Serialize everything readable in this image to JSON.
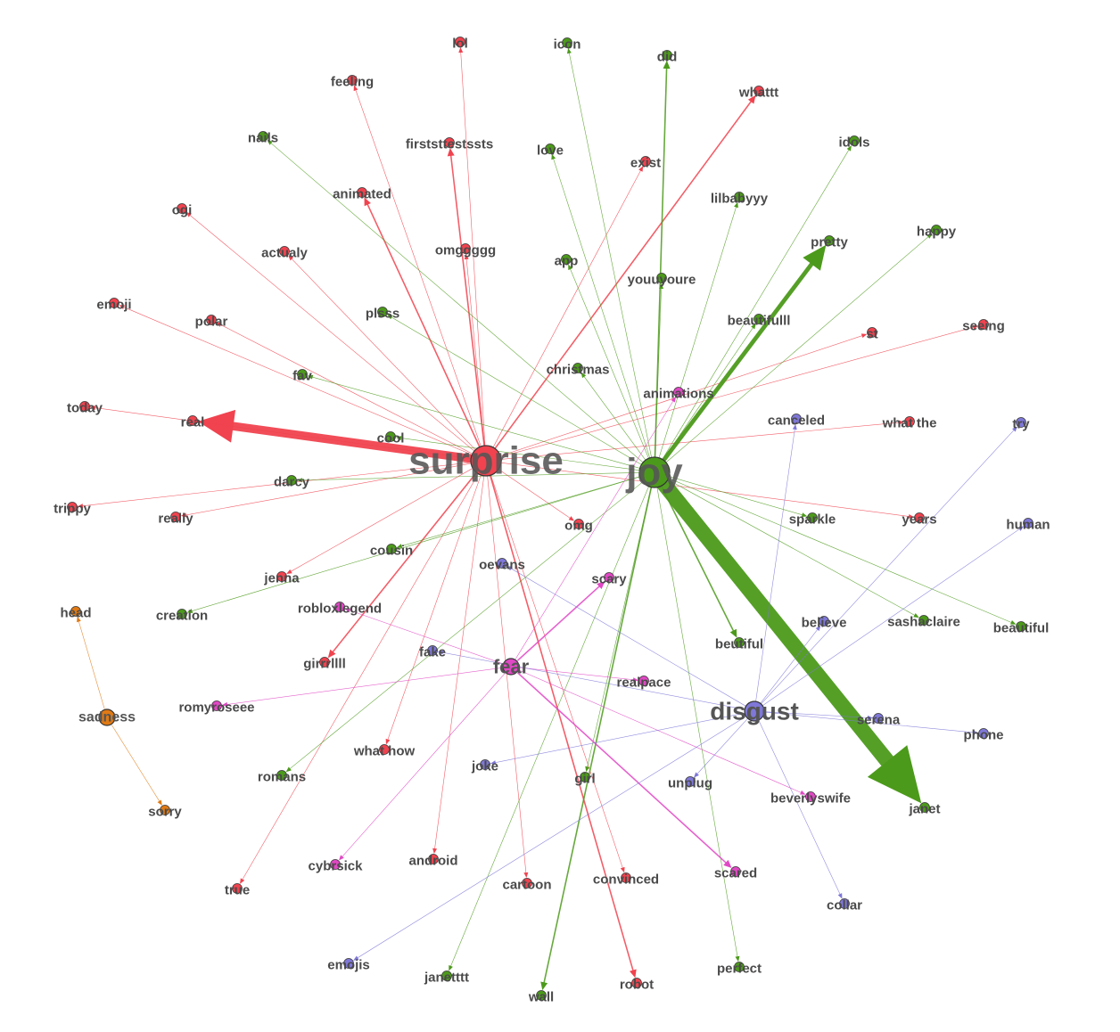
{
  "colors": {
    "surprise": "#f0434f",
    "joy": "#4c9a1b",
    "fear": "#e048c4",
    "disgust": "#7f78d8",
    "sadness": "#e07a14"
  },
  "hubs": [
    {
      "id": "surprise",
      "label": "surprise",
      "group": "surprise"
    },
    {
      "id": "joy",
      "label": "joy",
      "group": "joy"
    },
    {
      "id": "fear",
      "label": "fear",
      "group": "fear"
    },
    {
      "id": "disgust",
      "label": "disgust",
      "group": "disgust"
    },
    {
      "id": "sadness",
      "label": "sadness",
      "group": "sadness"
    }
  ],
  "nodes": [
    {
      "id": "n_lol",
      "label": "lol",
      "group": "surprise"
    },
    {
      "id": "feeling",
      "label": "feeling",
      "group": "surprise"
    },
    {
      "id": "firststtestssts",
      "label": "firststtestssts",
      "group": "surprise"
    },
    {
      "id": "animated",
      "label": "animated",
      "group": "surprise"
    },
    {
      "id": "ogi",
      "label": "ogi",
      "group": "surprise"
    },
    {
      "id": "actualy",
      "label": "actualy",
      "group": "surprise"
    },
    {
      "id": "omggggg",
      "label": "omggggg",
      "group": "surprise"
    },
    {
      "id": "emoji",
      "label": "emoji",
      "group": "surprise"
    },
    {
      "id": "polar",
      "label": "polar",
      "group": "surprise"
    },
    {
      "id": "today",
      "label": "today",
      "group": "surprise"
    },
    {
      "id": "real",
      "label": "real",
      "group": "surprise"
    },
    {
      "id": "trippy",
      "label": "trippy",
      "group": "surprise"
    },
    {
      "id": "really",
      "label": "really",
      "group": "surprise"
    },
    {
      "id": "jenna",
      "label": "jenna",
      "group": "surprise"
    },
    {
      "id": "girrrllll",
      "label": "girrrllll",
      "group": "surprise"
    },
    {
      "id": "whathow",
      "label": "what how",
      "group": "surprise"
    },
    {
      "id": "true",
      "label": "true",
      "group": "surprise"
    },
    {
      "id": "android",
      "label": "android",
      "group": "surprise"
    },
    {
      "id": "cartoon",
      "label": "cartoon",
      "group": "surprise"
    },
    {
      "id": "convinced",
      "label": "convinced",
      "group": "surprise"
    },
    {
      "id": "robot",
      "label": "robot",
      "group": "surprise"
    },
    {
      "id": "omg",
      "label": "omg",
      "group": "surprise"
    },
    {
      "id": "whattt",
      "label": "whattt",
      "group": "surprise"
    },
    {
      "id": "exist",
      "label": "exist",
      "group": "surprise"
    },
    {
      "id": "st",
      "label": "st",
      "group": "surprise"
    },
    {
      "id": "seeing",
      "label": "seeing",
      "group": "surprise"
    },
    {
      "id": "whatthe",
      "label": "what the",
      "group": "surprise"
    },
    {
      "id": "years",
      "label": "years",
      "group": "surprise"
    },
    {
      "id": "icon",
      "label": "icon",
      "group": "joy"
    },
    {
      "id": "did",
      "label": "did",
      "group": "joy"
    },
    {
      "id": "nails",
      "label": "nails",
      "group": "joy"
    },
    {
      "id": "love",
      "label": "love",
      "group": "joy"
    },
    {
      "id": "idols",
      "label": "idols",
      "group": "joy"
    },
    {
      "id": "lilbabyyy",
      "label": "lilbabyyy",
      "group": "joy"
    },
    {
      "id": "pretty",
      "label": "pretty",
      "group": "joy"
    },
    {
      "id": "happy",
      "label": "happy",
      "group": "joy"
    },
    {
      "id": "app",
      "label": "app",
      "group": "joy"
    },
    {
      "id": "youuyoure",
      "label": "youuyoure",
      "group": "joy"
    },
    {
      "id": "plsss",
      "label": "plsss",
      "group": "joy"
    },
    {
      "id": "beautifulll",
      "label": "beautifulll",
      "group": "joy"
    },
    {
      "id": "fav",
      "label": "fav",
      "group": "joy"
    },
    {
      "id": "christmas",
      "label": "christmas",
      "group": "joy"
    },
    {
      "id": "cool",
      "label": "cool",
      "group": "joy"
    },
    {
      "id": "darcy",
      "label": "darcy",
      "group": "joy"
    },
    {
      "id": "cousin",
      "label": "cousin",
      "group": "joy"
    },
    {
      "id": "creation",
      "label": "creation",
      "group": "joy"
    },
    {
      "id": "sparkle",
      "label": "sparkle",
      "group": "joy"
    },
    {
      "id": "sashaclaire",
      "label": "sashaclaire",
      "group": "joy"
    },
    {
      "id": "beautiful",
      "label": "beautiful",
      "group": "joy"
    },
    {
      "id": "beutiful",
      "label": "beutiful",
      "group": "joy"
    },
    {
      "id": "janet",
      "label": "janet",
      "group": "joy"
    },
    {
      "id": "romans",
      "label": "romans",
      "group": "joy"
    },
    {
      "id": "girl",
      "label": "girl",
      "group": "joy"
    },
    {
      "id": "janetttt",
      "label": "janetttt",
      "group": "joy"
    },
    {
      "id": "wall",
      "label": "wall",
      "group": "joy"
    },
    {
      "id": "perfect",
      "label": "perfect",
      "group": "joy"
    },
    {
      "id": "animations",
      "label": "animations",
      "group": "fear"
    },
    {
      "id": "scary",
      "label": "scary",
      "group": "fear"
    },
    {
      "id": "robloxlegend",
      "label": "robloxlegend",
      "group": "fear"
    },
    {
      "id": "romyroseee",
      "label": "romyroseee",
      "group": "fear"
    },
    {
      "id": "realpace",
      "label": "realpace",
      "group": "fear"
    },
    {
      "id": "beverlyswife",
      "label": "beverlyswife",
      "group": "fear"
    },
    {
      "id": "scared",
      "label": "scared",
      "group": "fear"
    },
    {
      "id": "cybrsick",
      "label": "cybrsick",
      "group": "fear"
    },
    {
      "id": "canceled",
      "label": "canceled",
      "group": "disgust"
    },
    {
      "id": "try",
      "label": "try",
      "group": "disgust"
    },
    {
      "id": "human",
      "label": "human",
      "group": "disgust"
    },
    {
      "id": "believe",
      "label": "believe",
      "group": "disgust"
    },
    {
      "id": "serena",
      "label": "serena",
      "group": "disgust"
    },
    {
      "id": "phone",
      "label": "phone",
      "group": "disgust"
    },
    {
      "id": "oevans",
      "label": "oevans",
      "group": "disgust"
    },
    {
      "id": "fake",
      "label": "fake",
      "group": "disgust"
    },
    {
      "id": "joke",
      "label": "joke",
      "group": "disgust"
    },
    {
      "id": "unplug",
      "label": "unplug",
      "group": "disgust"
    },
    {
      "id": "collar",
      "label": "collar",
      "group": "disgust"
    },
    {
      "id": "emojis",
      "label": "emojis",
      "group": "disgust"
    },
    {
      "id": "head",
      "label": "head",
      "group": "sadness"
    },
    {
      "id": "sorry",
      "label": "sorry",
      "group": "sadness"
    }
  ],
  "edges": [
    {
      "source": "surprise",
      "target": "real",
      "weight": 10
    },
    {
      "source": "surprise",
      "target": "n_lol",
      "weight": 1
    },
    {
      "source": "surprise",
      "target": "feeling",
      "weight": 1
    },
    {
      "source": "surprise",
      "target": "firststtestssts",
      "weight": 2
    },
    {
      "source": "surprise",
      "target": "animated",
      "weight": 2
    },
    {
      "source": "surprise",
      "target": "ogi",
      "weight": 1
    },
    {
      "source": "surprise",
      "target": "actualy",
      "weight": 1
    },
    {
      "source": "surprise",
      "target": "omggggg",
      "weight": 1
    },
    {
      "source": "surprise",
      "target": "emoji",
      "weight": 1
    },
    {
      "source": "surprise",
      "target": "polar",
      "weight": 1
    },
    {
      "source": "surprise",
      "target": "today",
      "weight": 1
    },
    {
      "source": "surprise",
      "target": "trippy",
      "weight": 1
    },
    {
      "source": "surprise",
      "target": "really",
      "weight": 1
    },
    {
      "source": "surprise",
      "target": "jenna",
      "weight": 1
    },
    {
      "source": "surprise",
      "target": "girrrllll",
      "weight": 2
    },
    {
      "source": "surprise",
      "target": "whathow",
      "weight": 1
    },
    {
      "source": "surprise",
      "target": "true",
      "weight": 1
    },
    {
      "source": "surprise",
      "target": "android",
      "weight": 1
    },
    {
      "source": "surprise",
      "target": "cartoon",
      "weight": 1
    },
    {
      "source": "surprise",
      "target": "convinced",
      "weight": 1
    },
    {
      "source": "surprise",
      "target": "robot",
      "weight": 2
    },
    {
      "source": "surprise",
      "target": "omg",
      "weight": 1
    },
    {
      "source": "surprise",
      "target": "whattt",
      "weight": 2
    },
    {
      "source": "surprise",
      "target": "exist",
      "weight": 1
    },
    {
      "source": "surprise",
      "target": "st",
      "weight": 1
    },
    {
      "source": "surprise",
      "target": "seeing",
      "weight": 1
    },
    {
      "source": "surprise",
      "target": "whatthe",
      "weight": 1
    },
    {
      "source": "surprise",
      "target": "years",
      "weight": 1
    },
    {
      "source": "joy",
      "target": "janet",
      "weight": 18
    },
    {
      "source": "joy",
      "target": "pretty",
      "weight": 5
    },
    {
      "source": "joy",
      "target": "did",
      "weight": 2
    },
    {
      "source": "joy",
      "target": "beutiful",
      "weight": 2
    },
    {
      "source": "joy",
      "target": "wall",
      "weight": 2
    },
    {
      "source": "joy",
      "target": "beautiful",
      "weight": 1
    },
    {
      "source": "joy",
      "target": "icon",
      "weight": 1
    },
    {
      "source": "joy",
      "target": "nails",
      "weight": 1
    },
    {
      "source": "joy",
      "target": "love",
      "weight": 1
    },
    {
      "source": "joy",
      "target": "idols",
      "weight": 1
    },
    {
      "source": "joy",
      "target": "lilbabyyy",
      "weight": 1
    },
    {
      "source": "joy",
      "target": "happy",
      "weight": 1
    },
    {
      "source": "joy",
      "target": "app",
      "weight": 1
    },
    {
      "source": "joy",
      "target": "youuyoure",
      "weight": 1
    },
    {
      "source": "joy",
      "target": "plsss",
      "weight": 1
    },
    {
      "source": "joy",
      "target": "beautifulll",
      "weight": 1
    },
    {
      "source": "joy",
      "target": "fav",
      "weight": 1
    },
    {
      "source": "joy",
      "target": "christmas",
      "weight": 1
    },
    {
      "source": "joy",
      "target": "cool",
      "weight": 1
    },
    {
      "source": "joy",
      "target": "darcy",
      "weight": 1
    },
    {
      "source": "joy",
      "target": "cousin",
      "weight": 1
    },
    {
      "source": "joy",
      "target": "creation",
      "weight": 1
    },
    {
      "source": "joy",
      "target": "sparkle",
      "weight": 1
    },
    {
      "source": "joy",
      "target": "sashaclaire",
      "weight": 1
    },
    {
      "source": "joy",
      "target": "romans",
      "weight": 1
    },
    {
      "source": "joy",
      "target": "girl",
      "weight": 1
    },
    {
      "source": "joy",
      "target": "janetttt",
      "weight": 1
    },
    {
      "source": "joy",
      "target": "perfect",
      "weight": 1
    },
    {
      "source": "fear",
      "target": "scary",
      "weight": 2
    },
    {
      "source": "fear",
      "target": "scared",
      "weight": 2
    },
    {
      "source": "fear",
      "target": "animations",
      "weight": 1
    },
    {
      "source": "fear",
      "target": "robloxlegend",
      "weight": 1
    },
    {
      "source": "fear",
      "target": "romyroseee",
      "weight": 1
    },
    {
      "source": "fear",
      "target": "realpace",
      "weight": 1
    },
    {
      "source": "fear",
      "target": "beverlyswife",
      "weight": 1
    },
    {
      "source": "fear",
      "target": "cybrsick",
      "weight": 1
    },
    {
      "source": "disgust",
      "target": "canceled",
      "weight": 1
    },
    {
      "source": "disgust",
      "target": "try",
      "weight": 1
    },
    {
      "source": "disgust",
      "target": "human",
      "weight": 1
    },
    {
      "source": "disgust",
      "target": "believe",
      "weight": 1
    },
    {
      "source": "disgust",
      "target": "serena",
      "weight": 1
    },
    {
      "source": "disgust",
      "target": "phone",
      "weight": 1
    },
    {
      "source": "disgust",
      "target": "oevans",
      "weight": 1
    },
    {
      "source": "disgust",
      "target": "fake",
      "weight": 1
    },
    {
      "source": "disgust",
      "target": "joke",
      "weight": 1
    },
    {
      "source": "disgust",
      "target": "unplug",
      "weight": 1
    },
    {
      "source": "disgust",
      "target": "collar",
      "weight": 1
    },
    {
      "source": "disgust",
      "target": "emojis",
      "weight": 1
    },
    {
      "source": "sadness",
      "target": "head",
      "weight": 1
    },
    {
      "source": "sadness",
      "target": "sorry",
      "weight": 1
    }
  ]
}
